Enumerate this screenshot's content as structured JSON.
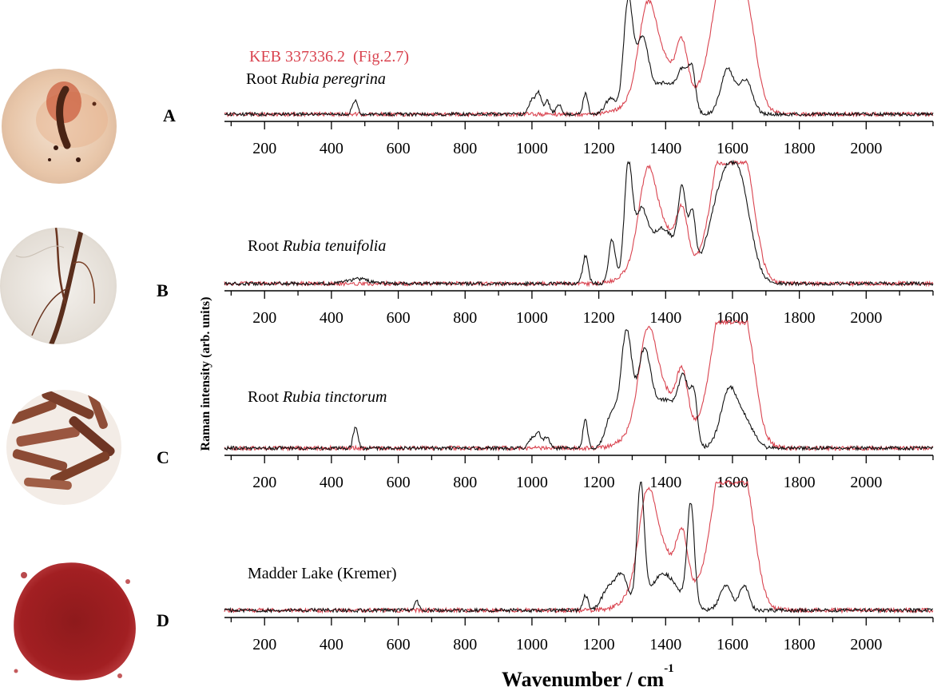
{
  "figure": {
    "ylabel": "Raman intensity (arb. units)",
    "xlabel": "Wavenumber / cm",
    "xlabel_superscript": "-1",
    "legend_sample": "KEB 337336.2  (Fig.2.7)"
  },
  "colors": {
    "sample_trace": "#d9434f",
    "reference_trace": "#111111",
    "axis": "#000000"
  },
  "photos": [
    {
      "label": "A",
      "icon": "orange-stained-paper-sample-photo"
    },
    {
      "label": "B",
      "icon": "thin-dried-root-photo"
    },
    {
      "label": "C",
      "icon": "cut-root-pieces-photo"
    },
    {
      "label": "D",
      "icon": "red-pigment-powder-photo"
    }
  ],
  "chart_data": [
    {
      "type": "line",
      "panel": "A",
      "annotation_prefix": "Root ",
      "annotation_italic": "Rubia peregrina",
      "xlim": [
        80,
        2200
      ],
      "xticks": [
        200,
        400,
        600,
        800,
        1000,
        1200,
        1400,
        1600,
        1800,
        2000
      ],
      "series": [
        {
          "role": "sample",
          "color": "#d9434f",
          "peaks": [
            [
              1345,
              0.62,
              25
            ],
            [
              1385,
              0.48,
              60
            ],
            [
              1450,
              0.4,
              16
            ],
            [
              1600,
              1.0,
              45
            ],
            [
              1570,
              0.55,
              40
            ],
            [
              1650,
              0.35,
              25
            ]
          ]
        },
        {
          "name": "Root Rubia peregrina",
          "role": "reference",
          "color": "#111111",
          "peaks": [
            [
              470,
              0.12,
              8
            ],
            [
              1000,
              0.13,
              10
            ],
            [
              1020,
              0.18,
              8
            ],
            [
              1045,
              0.12,
              8
            ],
            [
              1080,
              0.09,
              8
            ],
            [
              1160,
              0.18,
              7
            ],
            [
              1235,
              0.14,
              16
            ],
            [
              1288,
              1.0,
              14
            ],
            [
              1330,
              0.62,
              18
            ],
            [
              1395,
              0.28,
              40
            ],
            [
              1455,
              0.32,
              18
            ],
            [
              1480,
              0.28,
              10
            ],
            [
              1585,
              0.4,
              20
            ],
            [
              1640,
              0.3,
              20
            ]
          ]
        }
      ]
    },
    {
      "type": "line",
      "panel": "B",
      "annotation_prefix": "Root ",
      "annotation_italic": "Rubia tenuifolia",
      "xlim": [
        80,
        2200
      ],
      "xticks": [
        200,
        400,
        600,
        800,
        1000,
        1200,
        1400,
        1600,
        1800,
        2000
      ],
      "series": [
        {
          "role": "sample",
          "color": "#d9434f",
          "peaks": [
            [
              1345,
              0.62,
              25
            ],
            [
              1385,
              0.48,
              60
            ],
            [
              1450,
              0.4,
              16
            ],
            [
              1600,
              1.0,
              45
            ],
            [
              1570,
              0.55,
              40
            ],
            [
              1650,
              0.35,
              25
            ]
          ]
        },
        {
          "name": "Root Rubia tenuifolia",
          "role": "reference",
          "color": "#111111",
          "peaks": [
            [
              480,
              0.04,
              30
            ],
            [
              1160,
              0.24,
              8
            ],
            [
              1240,
              0.38,
              10
            ],
            [
              1288,
              0.98,
              12
            ],
            [
              1325,
              0.48,
              18
            ],
            [
              1390,
              0.48,
              45
            ],
            [
              1450,
              0.64,
              12
            ],
            [
              1480,
              0.48,
              10
            ],
            [
              1580,
              0.92,
              45
            ],
            [
              1630,
              0.4,
              30
            ]
          ]
        }
      ]
    },
    {
      "type": "line",
      "panel": "C",
      "annotation_prefix": "Root ",
      "annotation_italic": "Rubia tinctorum",
      "xlim": [
        80,
        2200
      ],
      "xticks": [
        200,
        400,
        600,
        800,
        1000,
        1200,
        1400,
        1600,
        1800,
        2000
      ],
      "series": [
        {
          "role": "sample",
          "color": "#d9434f",
          "peaks": [
            [
              1345,
              0.62,
              25
            ],
            [
              1385,
              0.48,
              60
            ],
            [
              1450,
              0.4,
              16
            ],
            [
              1600,
              1.0,
              45
            ],
            [
              1570,
              0.55,
              40
            ],
            [
              1650,
              0.35,
              25
            ]
          ]
        },
        {
          "name": "Root Rubia tinctorum",
          "role": "reference",
          "color": "#111111",
          "peaks": [
            [
              472,
              0.18,
              7
            ],
            [
              1000,
              0.08,
              10
            ],
            [
              1020,
              0.12,
              8
            ],
            [
              1045,
              0.1,
              8
            ],
            [
              1160,
              0.24,
              7
            ],
            [
              1240,
              0.3,
              18
            ],
            [
              1283,
              0.95,
              16
            ],
            [
              1335,
              0.72,
              20
            ],
            [
              1400,
              0.4,
              40
            ],
            [
              1455,
              0.45,
              16
            ],
            [
              1485,
              0.38,
              10
            ],
            [
              1590,
              0.48,
              25
            ],
            [
              1640,
              0.2,
              25
            ]
          ]
        }
      ]
    },
    {
      "type": "line",
      "panel": "D",
      "annotation_prefix": "Madder Lake (Kremer)",
      "annotation_italic": "",
      "xlim": [
        80,
        2200
      ],
      "xticks": [
        200,
        400,
        600,
        800,
        1000,
        1200,
        1400,
        1600,
        1800,
        2000
      ],
      "series": [
        {
          "role": "sample",
          "color": "#d9434f",
          "peaks": [
            [
              1345,
              0.62,
              25
            ],
            [
              1385,
              0.48,
              60
            ],
            [
              1450,
              0.4,
              16
            ],
            [
              1600,
              1.0,
              45
            ],
            [
              1570,
              0.55,
              40
            ],
            [
              1650,
              0.35,
              25
            ]
          ]
        },
        {
          "name": "Madder Lake (Kremer)",
          "role": "reference",
          "color": "#111111",
          "peaks": [
            [
              655,
              0.08,
              6
            ],
            [
              1160,
              0.12,
              8
            ],
            [
              1230,
              0.18,
              20
            ],
            [
              1270,
              0.28,
              18
            ],
            [
              1325,
              1.0,
              11
            ],
            [
              1395,
              0.3,
              40
            ],
            [
              1475,
              0.85,
              11
            ],
            [
              1580,
              0.2,
              18
            ],
            [
              1635,
              0.2,
              14
            ]
          ]
        }
      ]
    }
  ]
}
